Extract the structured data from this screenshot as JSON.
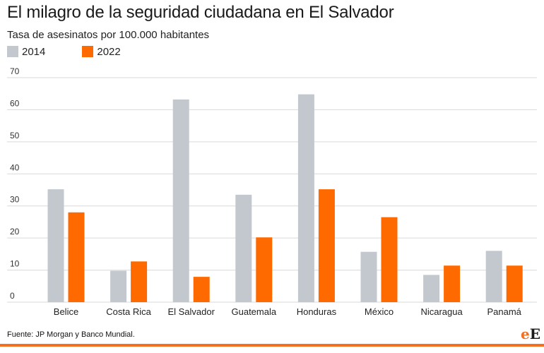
{
  "colors": {
    "s2014": "#c3c8cf",
    "s2022": "#ff6a00",
    "grid": "#d9d9d9",
    "accent": "#f36f21"
  },
  "logo": {
    "part1": "e",
    "part2": "E"
  },
  "source": "Fuente: JP Morgan y Banco Mundial.",
  "chart_data": {
    "type": "bar",
    "title": "El milagro de la seguridad ciudadana en El Salvador",
    "subtitle": "Tasa de asesinatos por 100.000 habitantes",
    "categories": [
      "Belice",
      "Costa Rica",
      "El Salvador",
      "Guatemala",
      "Honduras",
      "México",
      "Nicaragua",
      "Panamá"
    ],
    "series": [
      {
        "name": "2014",
        "values": [
          35.2,
          9.8,
          63.2,
          33.5,
          64.8,
          15.7,
          8.5,
          16.0
        ]
      },
      {
        "name": "2022",
        "values": [
          28.0,
          12.7,
          7.9,
          20.2,
          35.2,
          26.5,
          11.4,
          11.4
        ]
      }
    ],
    "yticks": [
      0,
      10,
      20,
      30,
      40,
      50,
      60,
      70
    ],
    "ylim": [
      0,
      70
    ],
    "grid": true,
    "legend": "top-left"
  }
}
